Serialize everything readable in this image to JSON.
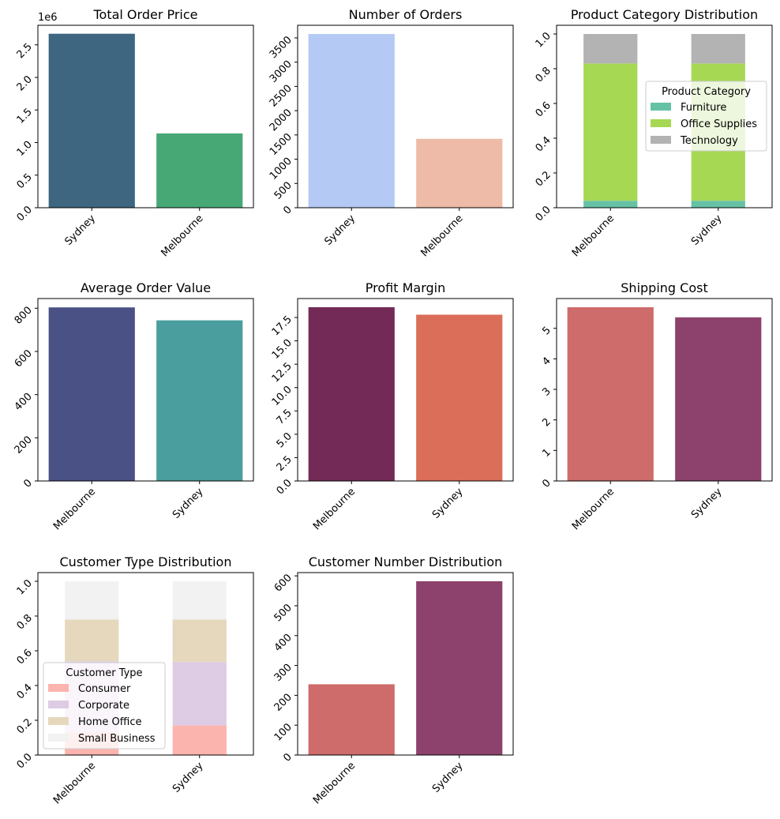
{
  "chart_data": [
    {
      "type": "bar",
      "title": "Total Order Price",
      "categories": [
        "Sydney",
        "Melbourne"
      ],
      "values": [
        2670000,
        1140000
      ],
      "colors": [
        "#3e6680",
        "#47a876"
      ],
      "ylim": [
        0,
        2800000
      ],
      "yticks": [
        0,
        500000,
        1000000,
        1500000,
        2000000,
        2500000
      ],
      "ytick_labels": [
        "0.0",
        "0.5",
        "1.0",
        "1.5",
        "2.0",
        "2.5"
      ],
      "offset_text": "1e6",
      "xlabel": "",
      "ylabel": ""
    },
    {
      "type": "bar",
      "title": "Number of Orders",
      "categories": [
        "Sydney",
        "Melbourne"
      ],
      "values": [
        3580,
        1420
      ],
      "colors": [
        "#b4c9f3",
        "#edbba7"
      ],
      "ylim": [
        0,
        3760
      ],
      "yticks": [
        0,
        500,
        1000,
        1500,
        2000,
        2500,
        3000,
        3500
      ],
      "ytick_labels": [
        "0",
        "500",
        "1000",
        "1500",
        "2000",
        "2500",
        "3000",
        "3500"
      ],
      "xlabel": "",
      "ylabel": ""
    },
    {
      "type": "stacked-bar",
      "title": "Product Category Distribution",
      "categories": [
        "Melbourne",
        "Sydney"
      ],
      "series": [
        {
          "name": "Furniture",
          "values": [
            0.04,
            0.04
          ],
          "color": "#66c2a5"
        },
        {
          "name": "Office Supplies",
          "values": [
            0.79,
            0.79
          ],
          "color": "#a6d854"
        },
        {
          "name": "Technology",
          "values": [
            0.17,
            0.17
          ],
          "color": "#b3b3b3"
        }
      ],
      "ylim": [
        0,
        1.05
      ],
      "yticks": [
        0,
        0.2,
        0.4,
        0.6,
        0.8,
        1.0
      ],
      "ytick_labels": [
        "0.0",
        "0.2",
        "0.4",
        "0.6",
        "0.8",
        "1.0"
      ],
      "legend_title": "Product Category",
      "legend_position": "center-right",
      "xlabel": "",
      "ylabel": ""
    },
    {
      "type": "bar",
      "title": "Average Order Value",
      "categories": [
        "Melbourne",
        "Sydney"
      ],
      "values": [
        804,
        744
      ],
      "colors": [
        "#4a5285",
        "#4a9e9e"
      ],
      "ylim": [
        0,
        845
      ],
      "yticks": [
        0,
        200,
        400,
        600,
        800
      ],
      "ytick_labels": [
        "0",
        "200",
        "400",
        "600",
        "800"
      ],
      "xlabel": "",
      "ylabel": ""
    },
    {
      "type": "bar",
      "title": "Profit Margin",
      "categories": [
        "Melbourne",
        "Sydney"
      ],
      "values": [
        18.6,
        17.8
      ],
      "colors": [
        "#742a56",
        "#db6e59"
      ],
      "ylim": [
        0,
        19.53
      ],
      "yticks": [
        0,
        2.5,
        5,
        7.5,
        10,
        12.5,
        15,
        17.5
      ],
      "ytick_labels": [
        "0.0",
        "2.5",
        "5.0",
        "7.5",
        "10.0",
        "12.5",
        "15.0",
        "17.5"
      ],
      "xlabel": "",
      "ylabel": ""
    },
    {
      "type": "bar",
      "title": "Shipping Cost",
      "categories": [
        "Melbourne",
        "Sydney"
      ],
      "values": [
        5.69,
        5.36
      ],
      "colors": [
        "#ce6b6b",
        "#8c426c"
      ],
      "ylim": [
        0,
        5.975
      ],
      "yticks": [
        0,
        1,
        2,
        3,
        4,
        5
      ],
      "ytick_labels": [
        "0",
        "1",
        "2",
        "3",
        "4",
        "5"
      ],
      "xlabel": "",
      "ylabel": ""
    },
    {
      "type": "stacked-bar",
      "title": "Customer Type Distribution",
      "categories": [
        "Melbourne",
        "Sydney"
      ],
      "series": [
        {
          "name": "Consumer",
          "values": [
            0.13,
            0.17
          ],
          "color": "#fbb4ae"
        },
        {
          "name": "Corporate",
          "values": [
            0.41,
            0.365
          ],
          "color": "#decbe4"
        },
        {
          "name": "Home Office",
          "values": [
            0.24,
            0.245
          ],
          "color": "#e5d8bd"
        },
        {
          "name": "Small Business",
          "values": [
            0.22,
            0.22
          ],
          "color": "#f2f2f2"
        }
      ],
      "ylim": [
        0,
        1.05
      ],
      "yticks": [
        0,
        0.2,
        0.4,
        0.6,
        0.8,
        1.0
      ],
      "ytick_labels": [
        "0.0",
        "0.2",
        "0.4",
        "0.6",
        "0.8",
        "1.0"
      ],
      "legend_title": "Customer Type",
      "legend_position": "lower-left",
      "xlabel": "",
      "ylabel": ""
    },
    {
      "type": "bar",
      "title": "Customer Number Distribution",
      "categories": [
        "Melbourne",
        "Sydney"
      ],
      "values": [
        237,
        582
      ],
      "colors": [
        "#ce6b6b",
        "#8c426c"
      ],
      "ylim": [
        0,
        611
      ],
      "yticks": [
        0,
        100,
        200,
        300,
        400,
        500,
        600
      ],
      "ytick_labels": [
        "0",
        "100",
        "200",
        "300",
        "400",
        "500",
        "600"
      ],
      "xlabel": "",
      "ylabel": ""
    }
  ]
}
